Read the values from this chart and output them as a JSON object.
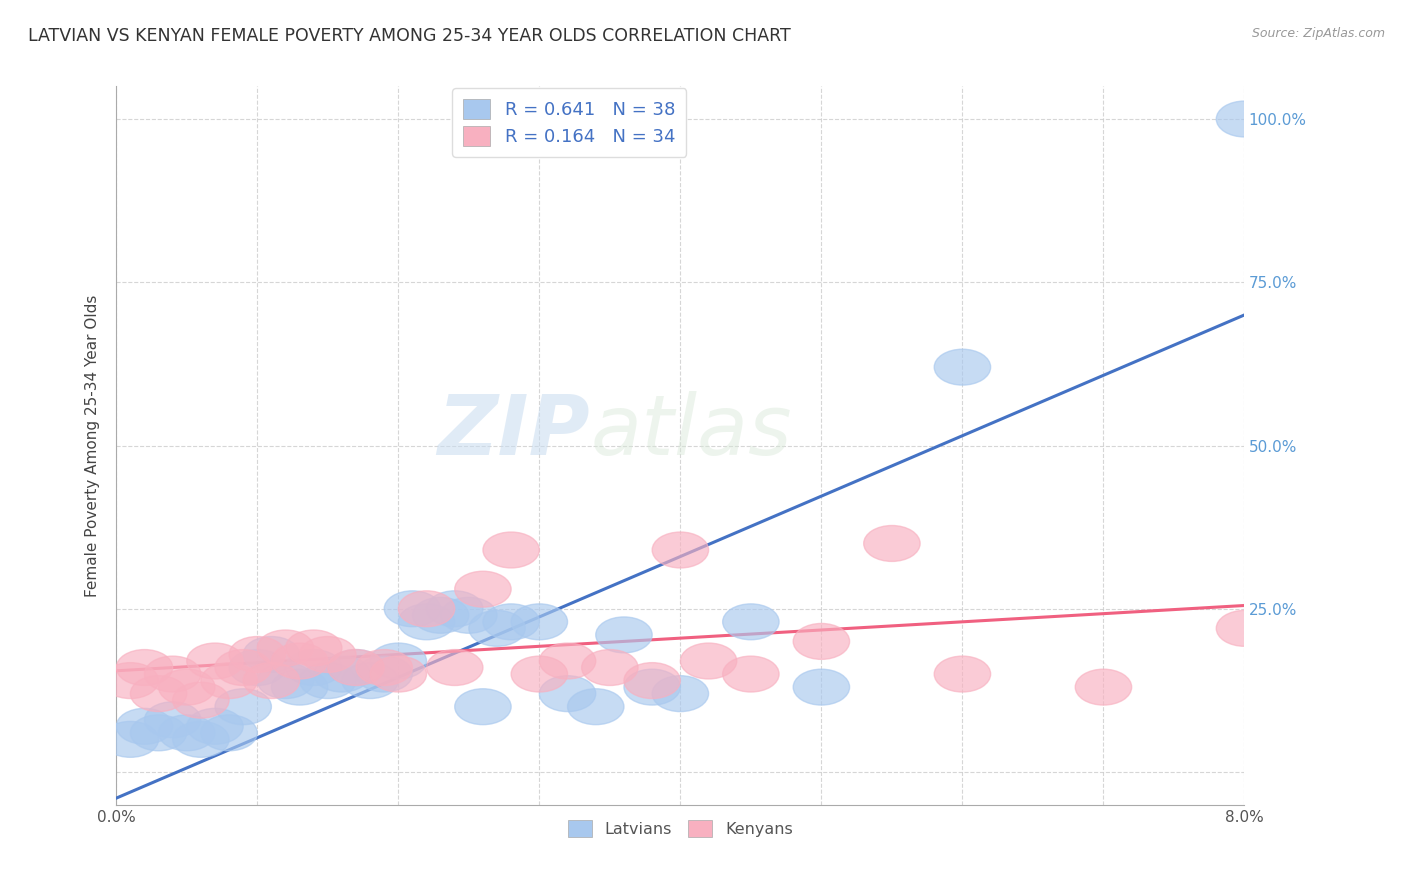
{
  "title": "LATVIAN VS KENYAN FEMALE POVERTY AMONG 25-34 YEAR OLDS CORRELATION CHART",
  "source": "Source: ZipAtlas.com",
  "ylabel": "Female Poverty Among 25-34 Year Olds",
  "right_yticks": [
    "100.0%",
    "75.0%",
    "50.0%",
    "25.0%"
  ],
  "right_ytick_vals": [
    1.0,
    0.75,
    0.5,
    0.25
  ],
  "latvian_R": "0.641",
  "latvian_N": "38",
  "kenyan_R": "0.164",
  "kenyan_N": "34",
  "latvian_color": "#A8C8EE",
  "kenyan_color": "#F8B0C0",
  "latvian_line_color": "#4472C4",
  "kenyan_line_color": "#F06080",
  "watermark_zip": "ZIP",
  "watermark_atlas": "atlas",
  "legend_latvians": "Latvians",
  "legend_kenyans": "Kenyans",
  "latvian_x": [
    0.001,
    0.002,
    0.003,
    0.004,
    0.005,
    0.006,
    0.007,
    0.008,
    0.009,
    0.01,
    0.011,
    0.012,
    0.013,
    0.014,
    0.015,
    0.016,
    0.017,
    0.018,
    0.019,
    0.02,
    0.021,
    0.022,
    0.023,
    0.024,
    0.025,
    0.026,
    0.027,
    0.028,
    0.03,
    0.032,
    0.034,
    0.036,
    0.038,
    0.04,
    0.045,
    0.05,
    0.06,
    0.08
  ],
  "latvian_y": [
    0.05,
    0.07,
    0.06,
    0.08,
    0.06,
    0.05,
    0.07,
    0.06,
    0.1,
    0.16,
    0.18,
    0.14,
    0.13,
    0.16,
    0.14,
    0.15,
    0.16,
    0.14,
    0.15,
    0.17,
    0.25,
    0.23,
    0.24,
    0.25,
    0.24,
    0.1,
    0.22,
    0.23,
    0.23,
    0.12,
    0.1,
    0.21,
    0.13,
    0.12,
    0.23,
    0.13,
    0.62,
    1.0
  ],
  "kenyan_x": [
    0.001,
    0.002,
    0.003,
    0.004,
    0.005,
    0.006,
    0.007,
    0.008,
    0.009,
    0.01,
    0.011,
    0.012,
    0.013,
    0.014,
    0.015,
    0.017,
    0.019,
    0.02,
    0.022,
    0.024,
    0.026,
    0.028,
    0.03,
    0.032,
    0.035,
    0.038,
    0.04,
    0.042,
    0.045,
    0.05,
    0.055,
    0.06,
    0.07,
    0.08
  ],
  "kenyan_y": [
    0.14,
    0.16,
    0.12,
    0.15,
    0.13,
    0.11,
    0.17,
    0.14,
    0.16,
    0.18,
    0.14,
    0.19,
    0.17,
    0.19,
    0.18,
    0.16,
    0.16,
    0.15,
    0.25,
    0.16,
    0.28,
    0.34,
    0.15,
    0.17,
    0.16,
    0.14,
    0.34,
    0.17,
    0.15,
    0.2,
    0.35,
    0.15,
    0.13,
    0.22
  ],
  "xlim": [
    0.0,
    0.08
  ],
  "ylim": [
    -0.05,
    1.05
  ],
  "lat_line_x0": 0.0,
  "lat_line_y0": -0.04,
  "lat_line_x1": 0.08,
  "lat_line_y1": 0.7,
  "ken_line_x0": 0.0,
  "ken_line_y0": 0.155,
  "ken_line_x1": 0.08,
  "ken_line_y1": 0.255
}
